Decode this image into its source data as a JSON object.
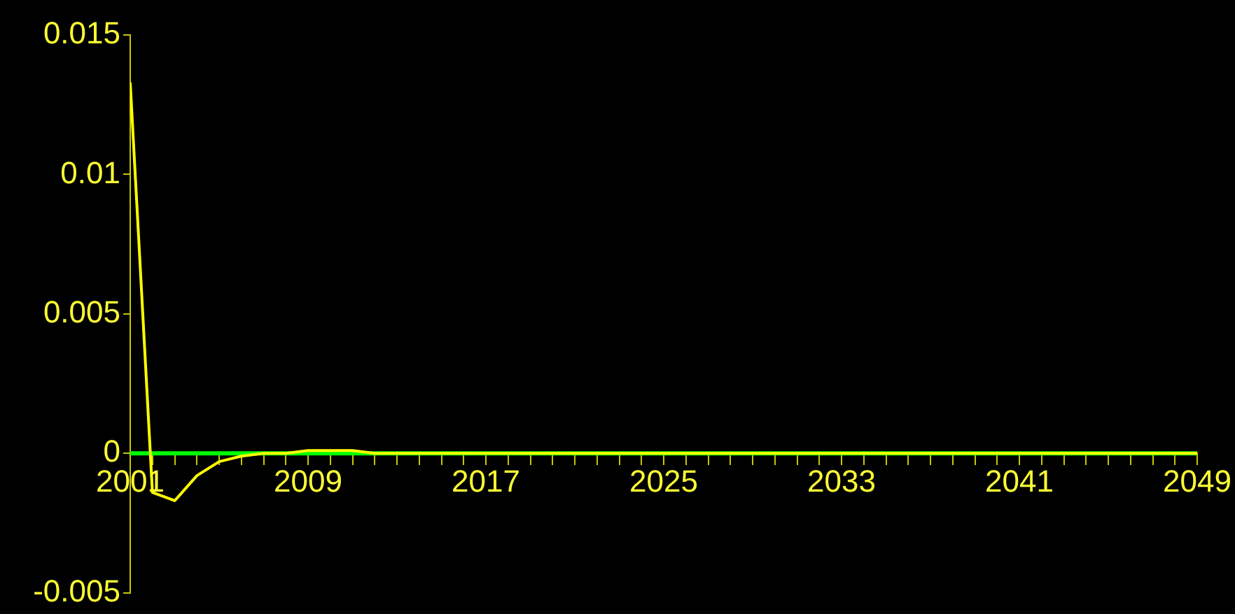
{
  "chart_data": {
    "type": "line",
    "x": [
      2001,
      2002,
      2003,
      2004,
      2005,
      2006,
      2007,
      2008,
      2009,
      2010,
      2011,
      2012,
      2013,
      2014,
      2015,
      2016,
      2017,
      2018,
      2019,
      2020,
      2021,
      2022,
      2023,
      2024,
      2025,
      2026,
      2027,
      2028,
      2029,
      2030,
      2031,
      2032,
      2033,
      2034,
      2035,
      2036,
      2037,
      2038,
      2039,
      2040,
      2041,
      2042,
      2043,
      2044,
      2045,
      2046,
      2047,
      2048,
      2049
    ],
    "series": [
      {
        "color": "#ffff00",
        "values": [
          0.0133,
          -0.0014,
          -0.0017,
          -0.0008,
          -0.0003,
          -0.0001,
          0,
          0,
          0.0001,
          0.0001,
          0.0001,
          0,
          0,
          0,
          0,
          0,
          0,
          0,
          0,
          0,
          0,
          0,
          0,
          0,
          0,
          0,
          0,
          0,
          0,
          0,
          0,
          0,
          0,
          0,
          0,
          0,
          0,
          0,
          0,
          0,
          0,
          0,
          0,
          0,
          0,
          0,
          0,
          0,
          0
        ]
      }
    ],
    "ref_lines": [
      {
        "axis": "y",
        "value": 0,
        "color": "#00ff00"
      }
    ],
    "xlim": [
      2001,
      2049
    ],
    "xticks": [
      2001,
      {
        "value": 2002,
        "label": null
      },
      {
        "value": 2003,
        "label": null
      },
      {
        "value": 2004,
        "label": null
      },
      {
        "value": 2005,
        "label": null
      },
      {
        "value": 2006,
        "label": null
      },
      {
        "value": 2007,
        "label": null
      },
      {
        "value": 2008,
        "label": null
      },
      2009,
      {
        "value": 2010,
        "label": null
      },
      {
        "value": 2011,
        "label": null
      },
      {
        "value": 2012,
        "label": null
      },
      {
        "value": 2013,
        "label": null
      },
      {
        "value": 2014,
        "label": null
      },
      {
        "value": 2015,
        "label": null
      },
      {
        "value": 2016,
        "label": null
      },
      2017,
      {
        "value": 2018,
        "label": null
      },
      {
        "value": 2019,
        "label": null
      },
      {
        "value": 2020,
        "label": null
      },
      {
        "value": 2021,
        "label": null
      },
      {
        "value": 2022,
        "label": null
      },
      {
        "value": 2023,
        "label": null
      },
      {
        "value": 2024,
        "label": null
      },
      2025,
      {
        "value": 2026,
        "label": null
      },
      {
        "value": 2027,
        "label": null
      },
      {
        "value": 2028,
        "label": null
      },
      {
        "value": 2029,
        "label": null
      },
      {
        "value": 2030,
        "label": null
      },
      {
        "value": 2031,
        "label": null
      },
      {
        "value": 2032,
        "label": null
      },
      2033,
      {
        "value": 2034,
        "label": null
      },
      {
        "value": 2035,
        "label": null
      },
      {
        "value": 2036,
        "label": null
      },
      {
        "value": 2037,
        "label": null
      },
      {
        "value": 2038,
        "label": null
      },
      {
        "value": 2039,
        "label": null
      },
      {
        "value": 2040,
        "label": null
      },
      2041,
      {
        "value": 2042,
        "label": null
      },
      {
        "value": 2043,
        "label": null
      },
      {
        "value": 2044,
        "label": null
      },
      {
        "value": 2045,
        "label": null
      },
      {
        "value": 2046,
        "label": null
      },
      {
        "value": 2047,
        "label": null
      },
      {
        "value": 2048,
        "label": null
      },
      2049
    ],
    "ylim": [
      -0.005,
      0.015
    ],
    "yticks": [
      -0.005,
      0,
      0.005,
      0.01,
      0.015
    ],
    "grid": false,
    "legend": false,
    "marker": "none",
    "line_style": "solid"
  }
}
